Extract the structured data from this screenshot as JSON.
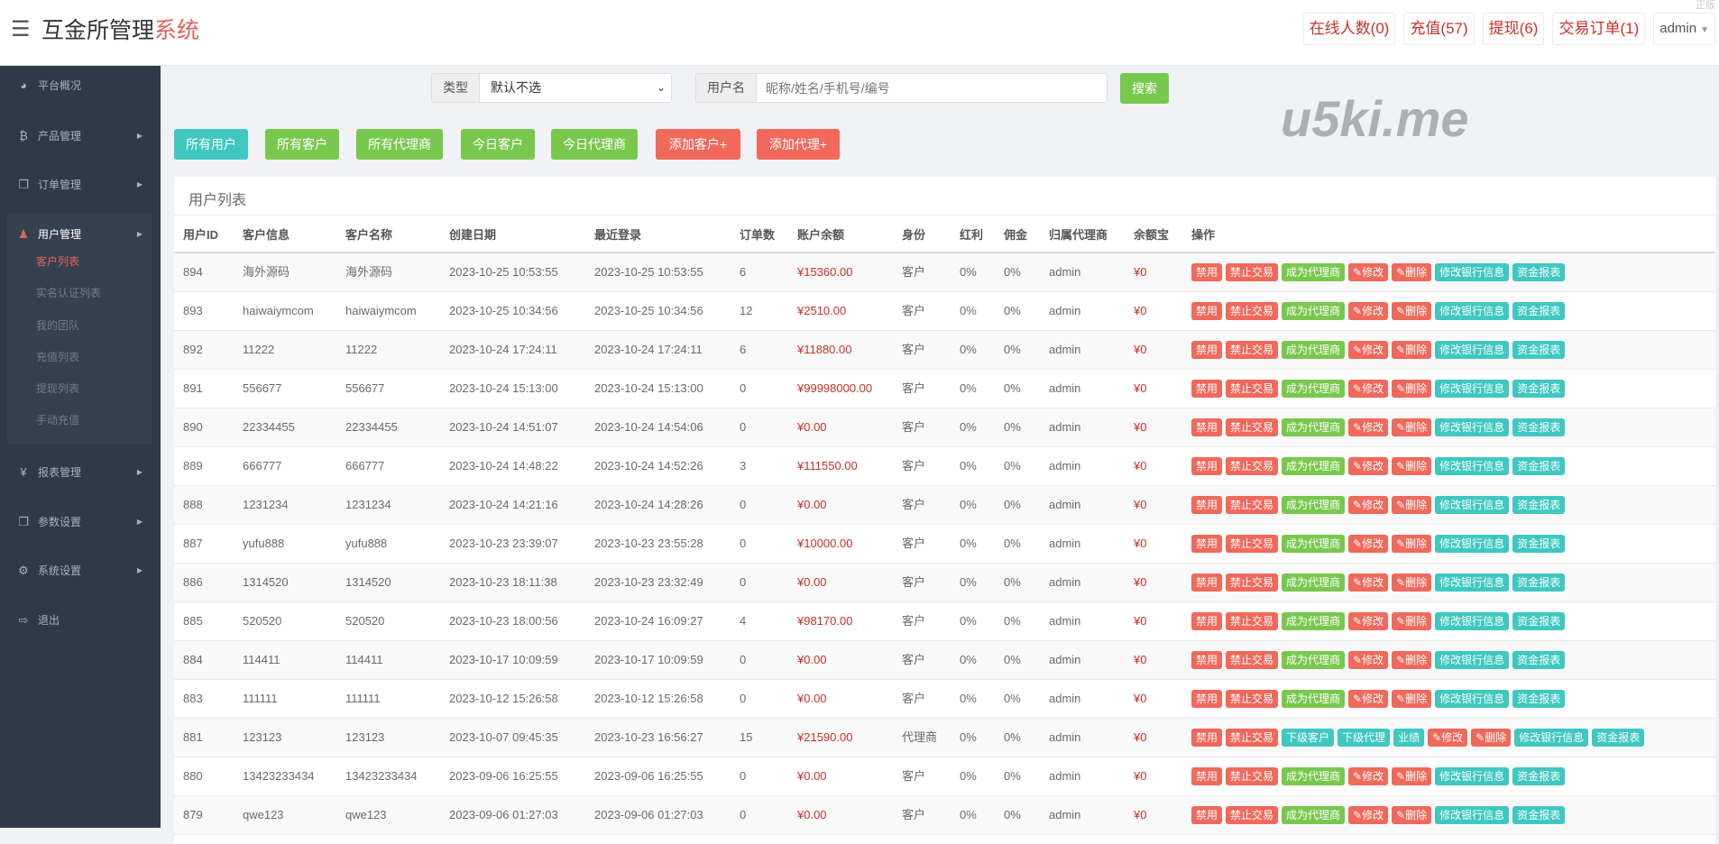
{
  "header": {
    "title_main": "互金所管理",
    "title_accent": "系统",
    "faint": "正版",
    "buttons": [
      "在线人数(0)",
      "充值(57)",
      "提现(6)",
      "交易订单(1)"
    ],
    "user": "admin"
  },
  "colors": {
    "red": "#f0695b",
    "green": "#79c84e",
    "teal": "#3fc8c0",
    "sidebar": "#2f3a47",
    "money": "#c9302c"
  },
  "sidebar": {
    "items": [
      {
        "label": "平台概况",
        "icon": "dashboard-icon"
      },
      {
        "label": "产品管理",
        "icon": "bitcoin-icon"
      },
      {
        "label": "订单管理",
        "icon": "copy-icon"
      },
      {
        "label": "用户管理",
        "icon": "user-icon",
        "active": true
      },
      {
        "label": "报表管理",
        "icon": "yen-icon"
      },
      {
        "label": "参数设置",
        "icon": "copy-icon"
      },
      {
        "label": "系统设置",
        "icon": "cogs-icon"
      },
      {
        "label": "退出",
        "icon": "sign-out-icon"
      }
    ],
    "submenu": [
      "客户列表",
      "实名认证列表",
      "我的团队",
      "充值列表",
      "提现列表",
      "手动充值"
    ]
  },
  "search": {
    "type_label": "类型",
    "type_value": "默认不选",
    "user_label": "用户名",
    "user_placeholder": "昵称/姓名/手机号/编号",
    "button": "搜索"
  },
  "filters": [
    {
      "label": "所有用户",
      "color": "teal"
    },
    {
      "label": "所有客户",
      "color": "green"
    },
    {
      "label": "所有代理商",
      "color": "green"
    },
    {
      "label": "今日客户",
      "color": "green"
    },
    {
      "label": "今日代理商",
      "color": "green"
    },
    {
      "label": "添加客户+",
      "color": "red"
    },
    {
      "label": "添加代理+",
      "color": "red"
    }
  ],
  "table": {
    "title": "用户列表",
    "columns": [
      "用户ID",
      "客户信息",
      "客户名称",
      "创建日期",
      "最近登录",
      "订单数",
      "账户余额",
      "身份",
      "红利",
      "佣金",
      "归属代理商",
      "余额宝",
      "操作"
    ],
    "rows": [
      [
        "894",
        "海外源码",
        "海外源码",
        "2023-10-25 10:53:55",
        "2023-10-25 10:53:55",
        "6",
        "¥15360.00",
        "客户",
        "0%",
        "0%",
        "admin",
        "¥0"
      ],
      [
        "893",
        "haiwaiymcom",
        "haiwaiymcom",
        "2023-10-25 10:34:56",
        "2023-10-25 10:34:56",
        "12",
        "¥2510.00",
        "客户",
        "0%",
        "0%",
        "admin",
        "¥0"
      ],
      [
        "892",
        "11222",
        "11222",
        "2023-10-24 17:24:11",
        "2023-10-24 17:24:11",
        "6",
        "¥11880.00",
        "客户",
        "0%",
        "0%",
        "admin",
        "¥0"
      ],
      [
        "891",
        "556677",
        "556677",
        "2023-10-24 15:13:00",
        "2023-10-24 15:13:00",
        "0",
        "¥99998000.00",
        "客户",
        "0%",
        "0%",
        "admin",
        "¥0"
      ],
      [
        "890",
        "22334455",
        "22334455",
        "2023-10-24 14:51:07",
        "2023-10-24 14:54:06",
        "0",
        "¥0.00",
        "客户",
        "0%",
        "0%",
        "admin",
        "¥0"
      ],
      [
        "889",
        "666777",
        "666777",
        "2023-10-24 14:48:22",
        "2023-10-24 14:52:26",
        "3",
        "¥111550.00",
        "客户",
        "0%",
        "0%",
        "admin",
        "¥0"
      ],
      [
        "888",
        "1231234",
        "1231234",
        "2023-10-24 14:21:16",
        "2023-10-24 14:28:26",
        "0",
        "¥0.00",
        "客户",
        "0%",
        "0%",
        "admin",
        "¥0"
      ],
      [
        "887",
        "yufu888",
        "yufu888",
        "2023-10-23 23:39:07",
        "2023-10-23 23:55:28",
        "0",
        "¥10000.00",
        "客户",
        "0%",
        "0%",
        "admin",
        "¥0"
      ],
      [
        "886",
        "1314520",
        "1314520",
        "2023-10-23 18:11:38",
        "2023-10-23 23:32:49",
        "0",
        "¥0.00",
        "客户",
        "0%",
        "0%",
        "admin",
        "¥0"
      ],
      [
        "885",
        "520520",
        "520520",
        "2023-10-23 18:00:56",
        "2023-10-24 16:09:27",
        "4",
        "¥98170.00",
        "客户",
        "0%",
        "0%",
        "admin",
        "¥0"
      ],
      [
        "884",
        "114411",
        "114411",
        "2023-10-17 10:09:59",
        "2023-10-17 10:09:59",
        "0",
        "¥0.00",
        "客户",
        "0%",
        "0%",
        "admin",
        "¥0"
      ],
      [
        "883",
        "111111",
        "111111",
        "2023-10-12 15:26:58",
        "2023-10-12 15:26:58",
        "0",
        "¥0.00",
        "客户",
        "0%",
        "0%",
        "admin",
        "¥0"
      ],
      [
        "881",
        "123123",
        "123123",
        "2023-10-07 09:45:35",
        "2023-10-23 16:56:27",
        "15",
        "¥21590.00",
        "代理商",
        "0%",
        "0%",
        "admin",
        "¥0"
      ],
      [
        "880",
        "13423233434",
        "13423233434",
        "2023-09-06 16:25:55",
        "2023-09-06 16:25:55",
        "0",
        "¥0.00",
        "客户",
        "0%",
        "0%",
        "admin",
        "¥0"
      ],
      [
        "879",
        "qwe123",
        "qwe123",
        "2023-09-06 01:27:03",
        "2023-09-06 01:27:03",
        "0",
        "¥0.00",
        "客户",
        "0%",
        "0%",
        "admin",
        "¥0"
      ]
    ],
    "actions_customer": [
      {
        "label": "禁用",
        "color": "red"
      },
      {
        "label": "禁止交易",
        "color": "red"
      },
      {
        "label": "成为代理商",
        "color": "green"
      },
      {
        "label": "✎修改",
        "color": "red"
      },
      {
        "label": "✎删除",
        "color": "red"
      },
      {
        "label": "修改银行信息",
        "color": "teal"
      },
      {
        "label": "资金报表",
        "color": "teal"
      }
    ],
    "actions_agent": [
      {
        "label": "禁用",
        "color": "red"
      },
      {
        "label": "禁止交易",
        "color": "red"
      },
      {
        "label": "下级客户",
        "color": "teal"
      },
      {
        "label": "下级代理",
        "color": "teal"
      },
      {
        "label": "业绩",
        "color": "teal"
      },
      {
        "label": "✎修改",
        "color": "red"
      },
      {
        "label": "✎删除",
        "color": "red"
      },
      {
        "label": "修改银行信息",
        "color": "teal"
      },
      {
        "label": "资金报表",
        "color": "teal"
      }
    ]
  },
  "watermark": "u5ki.me"
}
